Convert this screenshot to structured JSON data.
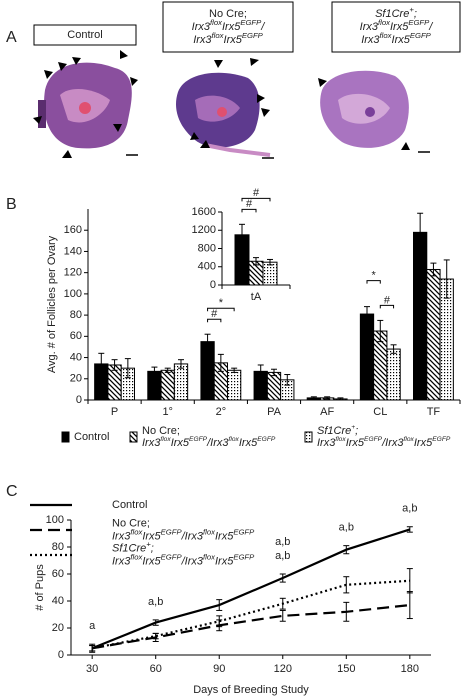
{
  "panel_a": {
    "letter": "A",
    "labels": [
      [
        [
          "Control"
        ]
      ],
      [
        [
          "No Cre;"
        ],
        [
          "Irx3",
          "flox",
          "Irx5",
          "EGFP",
          "/"
        ],
        [
          "Irx3",
          "flox",
          "Irx5",
          "EGFP"
        ]
      ],
      [
        [
          "Sf1Cre",
          "+",
          ";"
        ],
        [
          "Irx3",
          "flox",
          "Irx5",
          "EGFP",
          "/"
        ],
        [
          "Irx3",
          "flox",
          "Irx5",
          "EGFP"
        ]
      ]
    ]
  },
  "chart_data": [
    {
      "type": "bar",
      "panel": "B",
      "ylabel": "Avg. # of Follicles per Ovary",
      "categories": [
        "P",
        "1°",
        "2°",
        "PA",
        "AF",
        "CL",
        "TF"
      ],
      "series": [
        {
          "name": [
            [
              "Control"
            ]
          ],
          "pattern": "solid",
          "color": "#000000",
          "values": [
            34,
            27,
            55,
            27,
            2,
            81,
            158
          ],
          "errors": [
            10,
            4,
            7,
            6,
            1,
            7,
            18
          ]
        },
        {
          "name": [
            [
              "No Cre;"
            ],
            [
              "Irx3",
              "flox",
              "Irx5",
              "EGFP",
              "/Irx3",
              "flox",
              "Irx5",
              "EGFP"
            ]
          ],
          "pattern": "hatch",
          "color": "#000000",
          "values": [
            33,
            28,
            35,
            26,
            2,
            65,
            123
          ],
          "errors": [
            5,
            2,
            8,
            3,
            1,
            10,
            6
          ]
        },
        {
          "name": [
            [
              "Sf1Cre",
              "+",
              ";"
            ],
            [
              "Irx3",
              "flox",
              "Irx5",
              "EGFP",
              "/Irx3",
              "flox",
              "Irx5",
              "EGFP"
            ]
          ],
          "pattern": "dots",
          "color": "#000000",
          "values": [
            30,
            34,
            28,
            19,
            1,
            48,
            114
          ],
          "errors": [
            9,
            4,
            2,
            5,
            1,
            4,
            18
          ]
        }
      ],
      "ylim": [
        0,
        180
      ],
      "yticks": [
        0,
        20,
        40,
        60,
        80,
        100,
        120,
        140,
        160
      ],
      "annotations": [
        {
          "text": "#",
          "category": 2,
          "series": [
            0,
            1
          ]
        },
        {
          "text": "*",
          "category": 2,
          "series": [
            0,
            2
          ]
        },
        {
          "text": "#",
          "category": 5,
          "series": [
            1,
            2
          ]
        },
        {
          "text": "*",
          "category": 5,
          "series": [
            0,
            1
          ]
        }
      ],
      "inset": {
        "categories": [
          "tA"
        ],
        "series": [
          {
            "values": [
              1100
            ],
            "errors": [
              230
            ]
          },
          {
            "values": [
              520
            ],
            "errors": [
              80
            ]
          },
          {
            "values": [
              500
            ],
            "errors": [
              60
            ]
          }
        ],
        "ylim": [
          0,
          1600
        ],
        "yticks": [
          0,
          400,
          800,
          1200,
          1600
        ],
        "annotations": [
          {
            "text": "#",
            "category": 0,
            "series": [
              0,
              1
            ]
          },
          {
            "text": "#",
            "category": 0,
            "series": [
              0,
              2
            ]
          }
        ]
      }
    },
    {
      "type": "line",
      "panel": "C",
      "xlabel": "Days of Breeding Study",
      "ylabel": "# of Pups",
      "x": [
        30,
        60,
        90,
        120,
        150,
        180
      ],
      "series": [
        {
          "name": [
            [
              "Control"
            ]
          ],
          "dash": "solid",
          "color": "#000000",
          "values": [
            5,
            24,
            37,
            57,
            78,
            93
          ],
          "errors": [
            3,
            2,
            4,
            3,
            3,
            2
          ]
        },
        {
          "name": [
            [
              "No Cre;"
            ],
            [
              "Irx3",
              "flox",
              "Irx5",
              "EGFP",
              "/Irx3",
              "flox",
              "Irx5",
              "EGFP"
            ]
          ],
          "dash": "dashed",
          "color": "#000000",
          "values": [
            5,
            13,
            22,
            29,
            32,
            37
          ],
          "errors": [
            2,
            3,
            4,
            4,
            7,
            10
          ]
        },
        {
          "name": [
            [
              "Sf1Cre",
              "+",
              ";"
            ],
            [
              "Irx3",
              "flox",
              "Irx5",
              "EGFP",
              "/Irx3",
              "flox",
              "Irx5",
              "EGFP"
            ]
          ],
          "dash": "dotted",
          "color": "#000000",
          "values": [
            5,
            14,
            25,
            38,
            52,
            55
          ],
          "errors": [
            2,
            2,
            4,
            4,
            6,
            9
          ]
        }
      ],
      "xlim": [
        20,
        190
      ],
      "xticks": [
        30,
        60,
        90,
        120,
        150,
        180
      ],
      "ylim": [
        0,
        100
      ],
      "yticks": [
        0,
        20,
        40,
        60,
        80,
        100
      ],
      "annotations": [
        {
          "text": "a",
          "x": 30
        },
        {
          "text": "a,b",
          "x": 60
        },
        {
          "text": "a,b",
          "x": 120
        },
        {
          "text": "a,b",
          "x": 120
        },
        {
          "text": "a,b",
          "x": 150
        },
        {
          "text": "a,b",
          "x": 180
        }
      ]
    }
  ]
}
